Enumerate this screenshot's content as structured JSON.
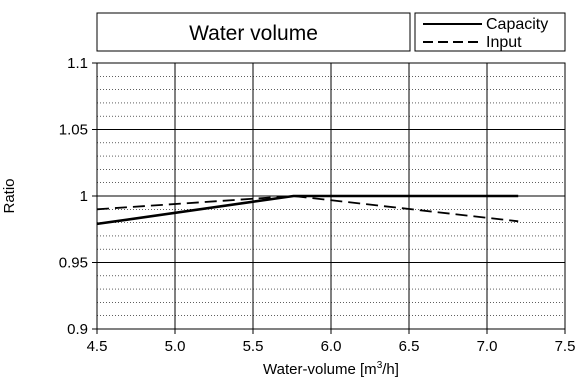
{
  "chart_data": {
    "type": "line",
    "title": "Water volume",
    "xlabel_main": "Water-volume [m",
    "xlabel_sup": "3",
    "xlabel_tail": "/h]",
    "ylabel": "Ratio",
    "xlim": [
      4.5,
      7.5
    ],
    "ylim": [
      0.9,
      1.1
    ],
    "x_ticks": [
      4.5,
      5.0,
      5.5,
      6.0,
      6.5,
      7.0,
      7.5
    ],
    "x_tick_labels": [
      "4.5",
      "5.0",
      "5.5",
      "6.0",
      "6.5",
      "7.0",
      "7.5"
    ],
    "y_ticks": [
      0.9,
      0.95,
      1.0,
      1.05,
      1.1
    ],
    "y_tick_labels": [
      "0.9",
      "0.95",
      "1",
      "1.05",
      "1.1"
    ],
    "grid": true,
    "legend_position": "top-right",
    "series": [
      {
        "name": "Capacity",
        "style": "solid",
        "x": [
          4.5,
          5.76,
          7.2
        ],
        "y": [
          0.979,
          1.0,
          1.0
        ]
      },
      {
        "name": "Input",
        "style": "dashed",
        "x": [
          4.5,
          5.76,
          7.2
        ],
        "y": [
          0.99,
          1.0,
          0.981
        ]
      }
    ]
  }
}
